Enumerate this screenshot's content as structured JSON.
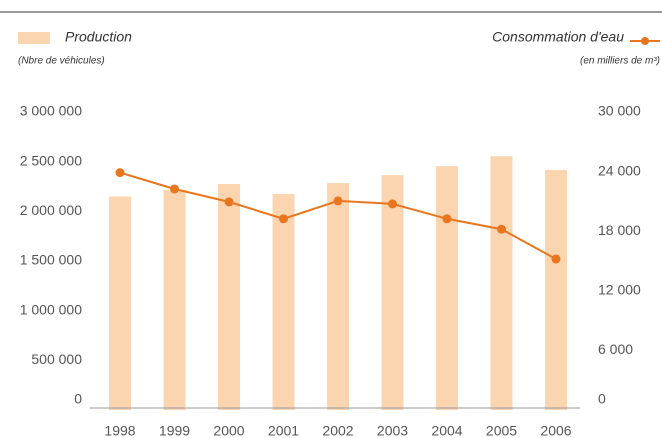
{
  "chart_data": {
    "type": "bar_line",
    "y_label": "(Nbre de véhicules)",
    "y2_label": "(en milliers de m³)",
    "categories": [
      "1998",
      "1999",
      "2000",
      "2001",
      "2002",
      "2003",
      "2004",
      "2005",
      "2006"
    ],
    "series": [
      {
        "name": "Production",
        "type": "bar",
        "color": "#fbd5b0",
        "axis": "y",
        "values": [
          2150000,
          2215000,
          2275000,
          2175000,
          2285000,
          2365000,
          2455000,
          2555000,
          2415000
        ]
      },
      {
        "name": "Consommation d'eau",
        "type": "line",
        "color": "#e8761e",
        "axis": "y2",
        "values": [
          23900,
          22250,
          20950,
          19250,
          21050,
          20750,
          19250,
          18200,
          15200
        ]
      }
    ],
    "ylim": [
      0,
      3000000
    ],
    "yticks": [
      0,
      {
        "value": 500000,
        "label": "500 000"
      },
      {
        "value": 1000000,
        "label": "1 000 000"
      },
      {
        "value": 1500000,
        "label": "1 500 000"
      },
      {
        "value": 2000000,
        "label": "2 000 000"
      },
      {
        "value": 2500000,
        "label": "2 500 000"
      },
      {
        "value": 3000000,
        "label": "3 000 000"
      }
    ],
    "y2lim": [
      0,
      30000
    ],
    "y2ticks": [
      0,
      {
        "value": 6000,
        "label": "6 000"
      },
      {
        "value": 12000,
        "label": "12 000"
      },
      {
        "value": 18000,
        "label": "18 000"
      },
      {
        "value": 24000,
        "label": "24 000"
      },
      {
        "value": 30000,
        "label": "30 000"
      }
    ]
  }
}
